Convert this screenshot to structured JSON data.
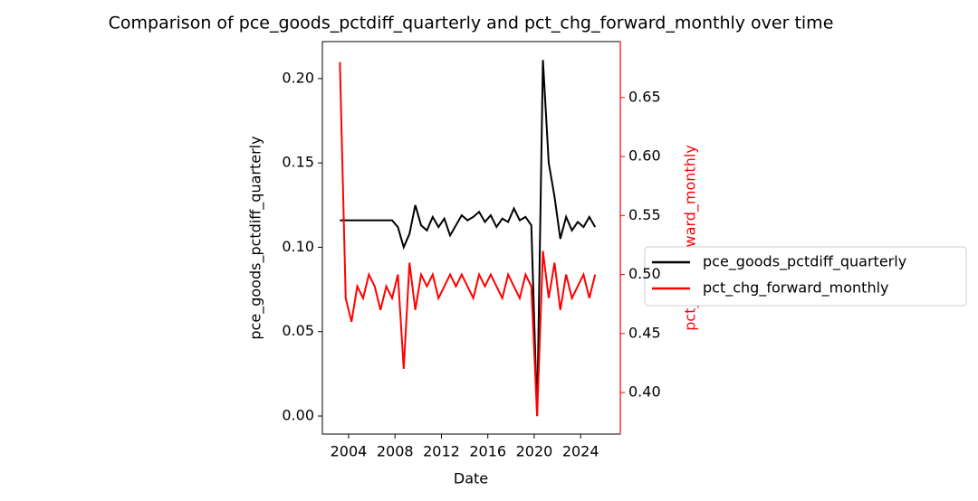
{
  "chart_data": {
    "type": "line",
    "title": "Comparison of pce_goods_pctdiff_quarterly and pct_chg_forward_monthly over time",
    "x_label": "Date",
    "y_label": "pce_goods_pctdiff_quarterly",
    "y2_label": "pct_chg_forward_monthly",
    "x": [
      2003.25,
      2003.75,
      2004.25,
      2004.75,
      2005.25,
      2005.75,
      2006.25,
      2006.75,
      2007.25,
      2007.75,
      2008.25,
      2008.75,
      2009.25,
      2009.75,
      2010.25,
      2010.75,
      2011.25,
      2011.75,
      2012.25,
      2012.75,
      2013.25,
      2013.75,
      2014.25,
      2014.75,
      2015.25,
      2015.75,
      2016.25,
      2016.75,
      2017.25,
      2017.75,
      2018.25,
      2018.75,
      2019.25,
      2019.75,
      2020.25,
      2020.75,
      2021.25,
      2021.75,
      2022.25,
      2022.75,
      2023.25,
      2023.75,
      2024.25,
      2024.75,
      2025.25
    ],
    "series": [
      {
        "name": "pce_goods_pctdiff_quarterly",
        "color": "#000000",
        "axis": "y",
        "values": [
          0.116,
          0.116,
          0.116,
          0.116,
          0.116,
          0.116,
          0.116,
          0.116,
          0.116,
          0.116,
          0.112,
          0.1,
          0.108,
          0.125,
          0.113,
          0.11,
          0.118,
          0.112,
          0.117,
          0.107,
          0.113,
          0.119,
          0.116,
          0.118,
          0.121,
          0.115,
          0.119,
          0.112,
          0.117,
          0.115,
          0.123,
          0.116,
          0.118,
          0.113,
          0.0,
          0.211,
          0.15,
          0.13,
          0.105,
          0.118,
          0.11,
          0.115,
          0.112,
          0.118,
          0.112
        ]
      },
      {
        "name": "pct_chg_forward_monthly",
        "color": "#ff0000",
        "axis": "y2",
        "values": [
          0.68,
          0.48,
          0.46,
          0.49,
          0.48,
          0.5,
          0.49,
          0.47,
          0.49,
          0.48,
          0.5,
          0.42,
          0.51,
          0.47,
          0.5,
          0.49,
          0.5,
          0.48,
          0.49,
          0.5,
          0.49,
          0.5,
          0.49,
          0.48,
          0.5,
          0.49,
          0.5,
          0.49,
          0.48,
          0.5,
          0.49,
          0.48,
          0.5,
          0.49,
          0.38,
          0.52,
          0.48,
          0.51,
          0.47,
          0.5,
          0.48,
          0.49,
          0.5,
          0.48,
          0.5
        ]
      }
    ],
    "xlim": [
      2001.74,
      2027.42
    ],
    "xticks": [
      2004,
      2008,
      2012,
      2016,
      2020,
      2024
    ],
    "ylim": [
      -0.0107,
      0.2219
    ],
    "yticks": [
      {
        "value": 0,
        "label": "0.00"
      },
      {
        "value": 0.05,
        "label": "0.05"
      },
      {
        "value": 0.1,
        "label": "0.10"
      },
      {
        "value": 0.15,
        "label": "0.15"
      },
      {
        "value": 0.2,
        "label": "0.20"
      }
    ],
    "y2lim": [
      0.3648,
      0.6974
    ],
    "y2ticks": [
      {
        "value": 0.4,
        "label": "0.40"
      },
      {
        "value": 0.45,
        "label": "0.45"
      },
      {
        "value": 0.5,
        "label": "0.50"
      },
      {
        "value": 0.55,
        "label": "0.55"
      },
      {
        "value": 0.6,
        "label": "0.60"
      },
      {
        "value": 0.65,
        "label": "0.65"
      }
    ],
    "y2_color": "#ff0000"
  }
}
